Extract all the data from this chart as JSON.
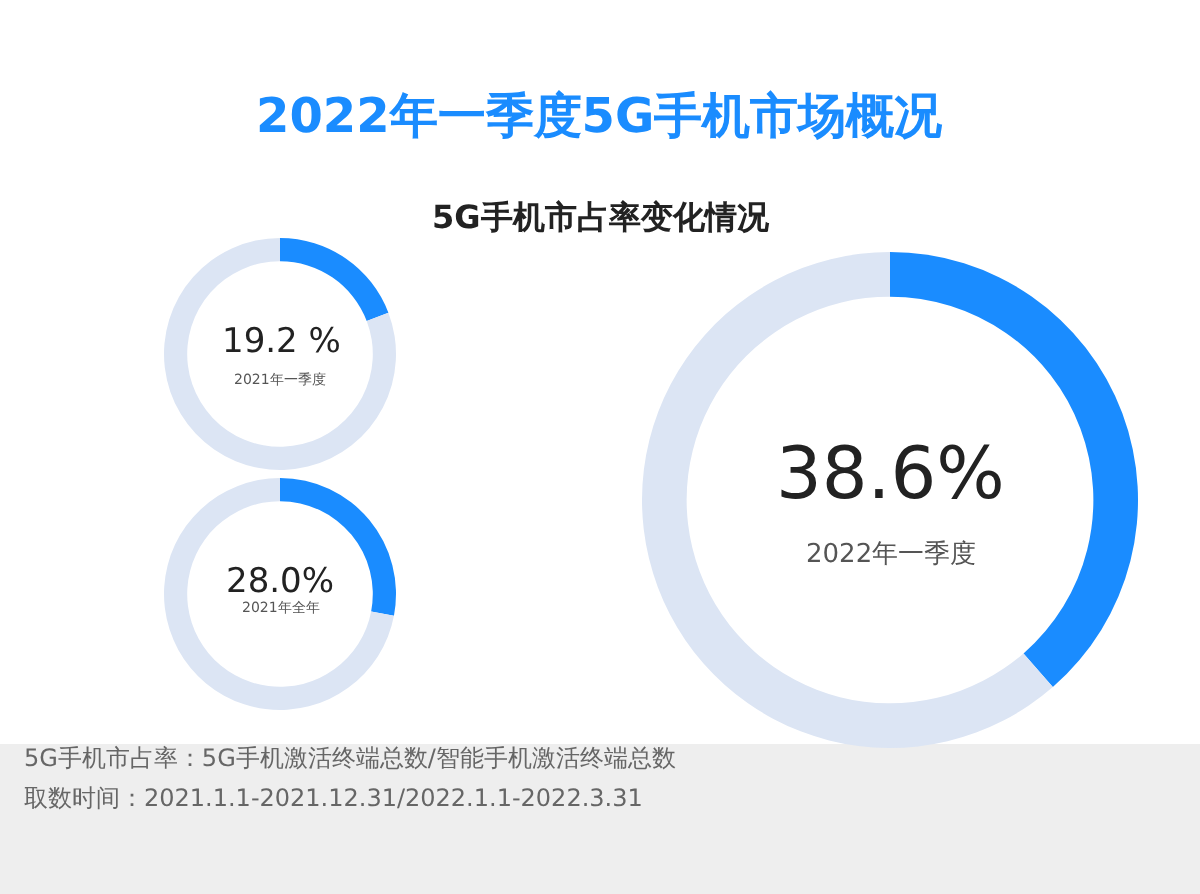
{
  "chart_data": [
    {
      "type": "donut",
      "title": "2022年一季度5G手机市场概况",
      "subtitle": "5G手机市占率变化情况",
      "categories": [
        null,
        null
      ],
      "values": [
        19.2,
        80.8
      ],
      "colors": [
        "#1a8cff",
        "#dce5f4"
      ],
      "annotations": [
        "19.2 %",
        "2021年一季度",
        "5G手机市占率：5G手机激活终端总数/智能手机激活终端总数",
        "取数时间：2021.1.1-2021.12.31/2022.1.1-2022.3.31"
      ]
    },
    {
      "type": "donut",
      "categories": [
        null,
        null
      ],
      "values": [
        28.0,
        72.0
      ],
      "colors": [
        "#1a8cff",
        "#dce5f4"
      ],
      "annotations": [
        "28.0%",
        "2021年全年"
      ]
    },
    {
      "type": "donut",
      "categories": [
        null,
        null
      ],
      "values": [
        38.6,
        61.4
      ],
      "colors": [
        "#1a8cff",
        "#dce5f4"
      ],
      "annotations": [
        "38.6%",
        "2022年一季度"
      ]
    }
  ]
}
